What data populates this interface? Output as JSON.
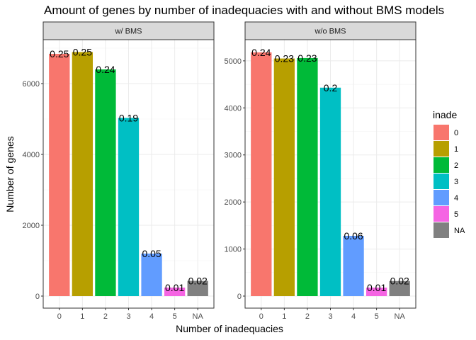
{
  "chart_data": {
    "type": "bar",
    "title": "Amount of genes by number of inadequacies with and without BMS models",
    "xlabel": "Number of inadequacies",
    "ylabel": "Number of genes",
    "categories": [
      "0",
      "1",
      "2",
      "3",
      "4",
      "5",
      "NA"
    ],
    "colors": [
      "#F8766D",
      "#B79F00",
      "#00BA38",
      "#00BFC4",
      "#619CFF",
      "#F564E3",
      "#808080"
    ],
    "legend": {
      "title": "inade",
      "position": "right",
      "labels": [
        "0",
        "1",
        "2",
        "3",
        "4",
        "5",
        "NA"
      ]
    },
    "grid": true,
    "panels": [
      {
        "strip": "w/ BMS",
        "values": [
          6840,
          6890,
          6400,
          5030,
          1200,
          240,
          430
        ],
        "labels": [
          "0.25",
          "0.25",
          "0.24",
          "0.19",
          "0.05",
          "0.01",
          "0.02"
        ],
        "ylim": [
          0,
          7200
        ],
        "yticks": [
          0,
          2000,
          4000,
          6000
        ]
      },
      {
        "strip": "w/o BMS",
        "values": [
          5180,
          5050,
          5060,
          4430,
          1280,
          180,
          320
        ],
        "labels": [
          "0.24",
          "0.23",
          "0.23",
          "0.2",
          "0.06",
          "0.01",
          "0.02"
        ],
        "ylim": [
          0,
          5420
        ],
        "yticks": [
          0,
          1000,
          2000,
          3000,
          4000,
          5000
        ]
      }
    ]
  }
}
